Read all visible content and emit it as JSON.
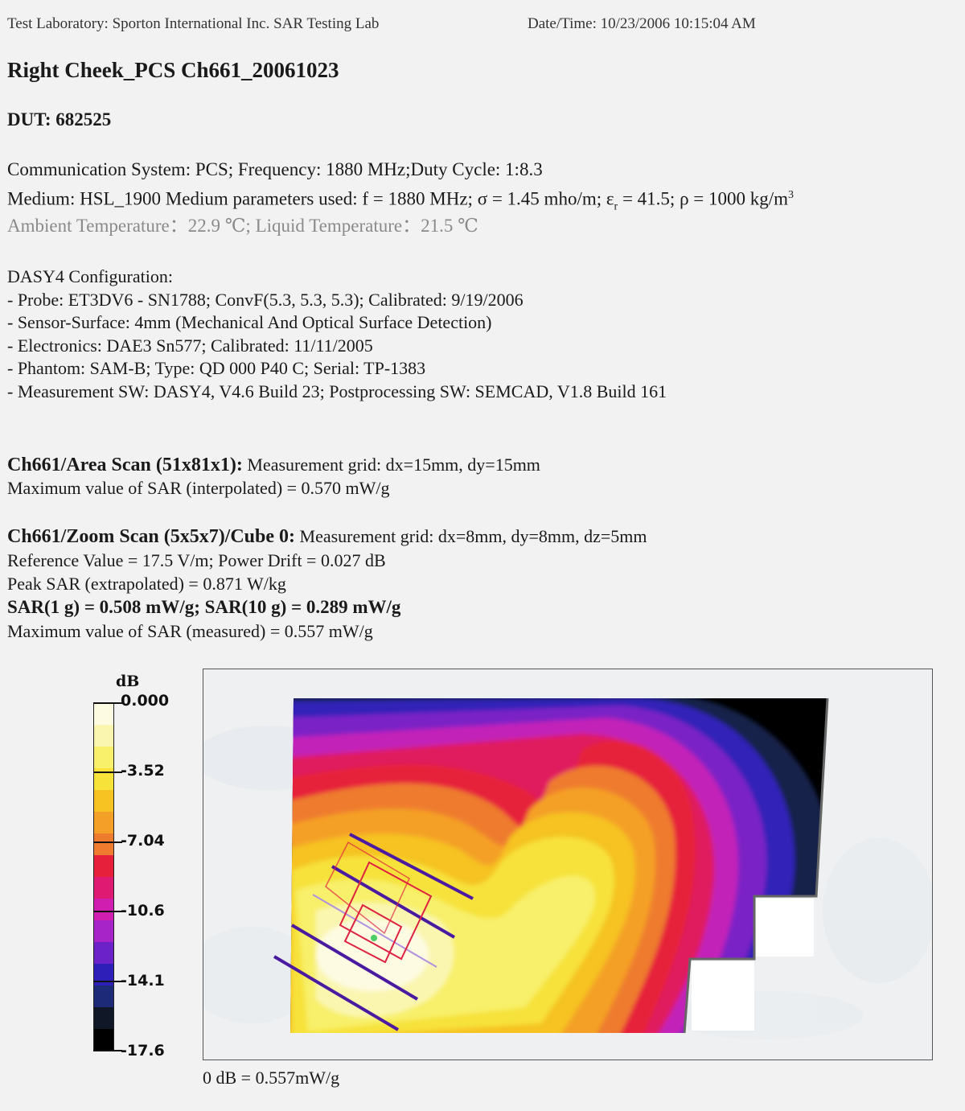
{
  "header": {
    "lab": "Test Laboratory: Sporton International Inc. SAR Testing Lab",
    "datetime": "Date/Time: 10/23/2006 10:15:04 AM"
  },
  "title": "Right Cheek_PCS Ch661_20061023",
  "dut": "DUT: 682525",
  "comm": {
    "line1": "Communication System: PCS; Frequency: 1880 MHz;Duty Cycle: 1:8.3",
    "line2_prefix": "Medium: HSL_1900 Medium parameters used: f = 1880 MHz; σ = 1.45 mho/m; ε",
    "line2_sub": "r",
    "line2_mid": " = 41.5; ρ = 1000 kg/m",
    "line2_sup": "3",
    "line3": "Ambient Temperature：22.9 ℃; Liquid Temperature：21.5 ℃"
  },
  "dasy": {
    "heading": "DASY4 Configuration:",
    "items": [
      "- Probe: ET3DV6 - SN1788; ConvF(5.3, 5.3, 5.3); Calibrated: 9/19/2006",
      "- Sensor-Surface: 4mm (Mechanical And Optical Surface Detection)",
      "- Electronics: DAE3 Sn577; Calibrated: 11/11/2005",
      "- Phantom: SAM-B; Type: QD 000 P40 C; Serial: TP-1383",
      "- Measurement SW: DASY4, V4.6 Build 23; Postprocessing SW: SEMCAD, V1.8 Build 161"
    ]
  },
  "area_scan": {
    "label": "Ch661/Area Scan (51x81x1):",
    "grid": " Measurement grid: dx=15mm, dy=15mm",
    "max": "Maximum value of SAR (interpolated) = 0.570 mW/g"
  },
  "zoom_scan": {
    "label": "Ch661/Zoom Scan (5x5x7)/Cube 0:",
    "grid": " Measurement grid: dx=8mm, dy=8mm, dz=5mm",
    "ref": "Reference Value = 17.5 V/m; Power Drift = 0.027 dB",
    "peak": "Peak SAR (extrapolated) = 0.871 W/kg",
    "sar": "SAR(1 g) = 0.508 mW/g; SAR(10 g) = 0.289 mW/g",
    "max": "Maximum value of SAR (measured) = 0.557 mW/g"
  },
  "colorbar": {
    "unit": "dB",
    "labels": [
      "0.000",
      "-3.52",
      "-7.04",
      "-10.6",
      "-14.1",
      "-17.6"
    ],
    "colors": [
      "#fdfbe2",
      "#faf6b0",
      "#f8f06a",
      "#f7e23a",
      "#f6c323",
      "#f4a028",
      "#ef7c2e",
      "#e6203a",
      "#de1a72",
      "#d01fb0",
      "#a624c8",
      "#6b22c8",
      "#2e1fb8",
      "#1c2a78",
      "#101828",
      "#000000"
    ]
  },
  "footer": "0 dB = 0.557mW/g"
}
